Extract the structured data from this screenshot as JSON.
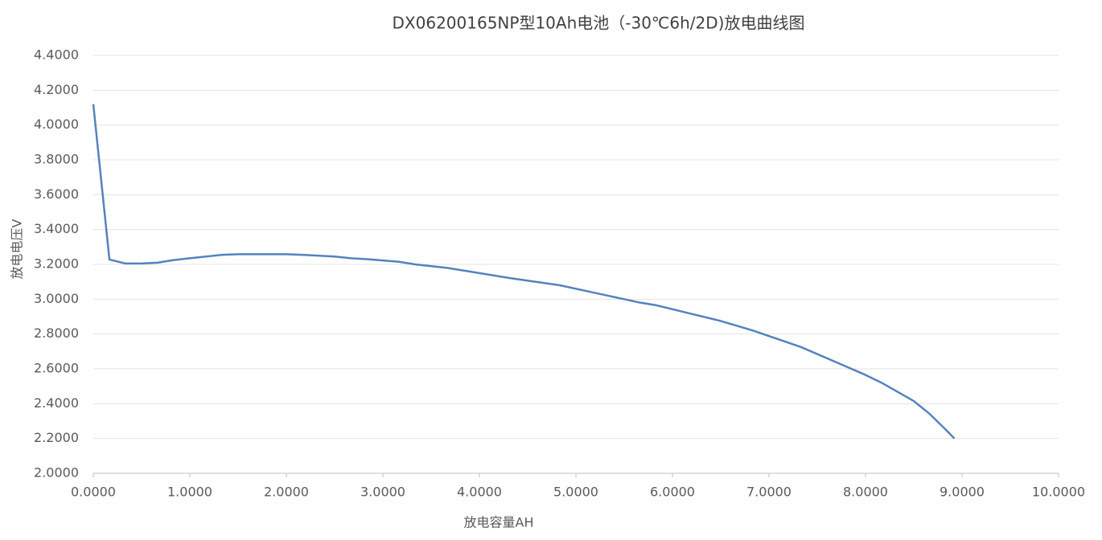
{
  "chart_data": {
    "type": "line",
    "title": "DX06200165NP型10Ah电池（-30℃6h/2D)放电曲线图",
    "x_label": "放电容量AH",
    "y_label": "放电电压V",
    "grid": true,
    "color": "#5582bd",
    "x": [
      0,
      0.167,
      0.333,
      0.5,
      0.667,
      0.833,
      1.0,
      1.167,
      1.333,
      1.5,
      1.667,
      2.0,
      2.167,
      2.5,
      2.667,
      2.833,
      3.167,
      3.333,
      3.667,
      4.0,
      4.333,
      4.833,
      5.167,
      5.5,
      5.667,
      5.833,
      6.167,
      6.5,
      6.833,
      7.333,
      7.667,
      8.0,
      8.167,
      8.5,
      8.667,
      8.833,
      8.92
    ],
    "values": [
      4.12,
      3.228,
      3.205,
      3.205,
      3.21,
      3.225,
      3.235,
      3.245,
      3.255,
      3.258,
      3.258,
      3.258,
      3.255,
      3.245,
      3.235,
      3.23,
      3.215,
      3.2,
      3.18,
      3.15,
      3.12,
      3.08,
      3.04,
      3.0,
      2.98,
      2.965,
      2.92,
      2.875,
      2.82,
      2.725,
      2.645,
      2.565,
      2.52,
      2.415,
      2.34,
      2.25,
      2.2
    ],
    "xlim": [
      0,
      10
    ],
    "ylim": [
      2.0,
      4.4
    ],
    "xticks": [
      {
        "value": 0,
        "label": "0.0000"
      },
      {
        "value": 1,
        "label": "1.0000"
      },
      {
        "value": 2,
        "label": "2.0000"
      },
      {
        "value": 3,
        "label": "3.0000"
      },
      {
        "value": 4,
        "label": "4.0000"
      },
      {
        "value": 5,
        "label": "5.0000"
      },
      {
        "value": 6,
        "label": "6.0000"
      },
      {
        "value": 7,
        "label": "7.0000"
      },
      {
        "value": 8,
        "label": "8.0000"
      },
      {
        "value": 9,
        "label": "9.0000"
      },
      {
        "value": 10,
        "label": "10.0000"
      }
    ],
    "yticks": [
      {
        "value": 2.0,
        "label": "2.0000"
      },
      {
        "value": 2.2,
        "label": "2.2000"
      },
      {
        "value": 2.4,
        "label": "2.4000"
      },
      {
        "value": 2.6,
        "label": "2.6000"
      },
      {
        "value": 2.8,
        "label": "2.8000"
      },
      {
        "value": 3.0,
        "label": "3.0000"
      },
      {
        "value": 3.2,
        "label": "3.2000"
      },
      {
        "value": 3.4,
        "label": "3.4000"
      },
      {
        "value": 3.6,
        "label": "3.6000"
      },
      {
        "value": 3.8,
        "label": "3.8000"
      },
      {
        "value": 4.0,
        "label": "4.0000"
      },
      {
        "value": 4.2,
        "label": "4.2000"
      },
      {
        "value": 4.4,
        "label": "4.4000"
      }
    ]
  }
}
